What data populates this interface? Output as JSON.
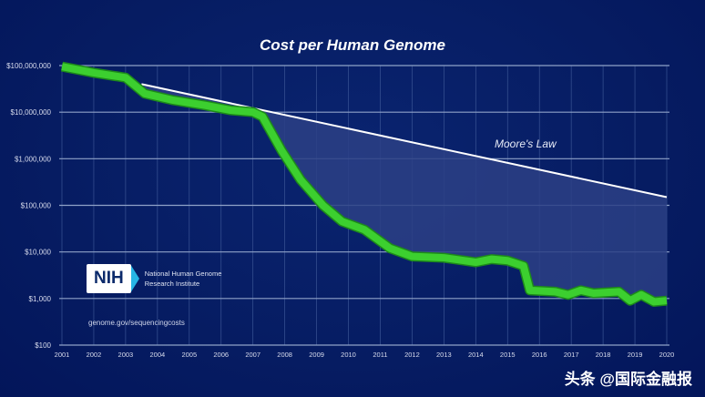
{
  "chart_data": {
    "type": "line",
    "title": "Cost per Human Genome",
    "xlabel": "",
    "ylabel": "",
    "yscale": "log",
    "ylim": [
      100,
      100000000
    ],
    "xlim": [
      2001,
      2020
    ],
    "y_ticks": [
      {
        "value": 100000000,
        "label": "$100,000,000"
      },
      {
        "value": 10000000,
        "label": "$10,000,000"
      },
      {
        "value": 1000000,
        "label": "$1,000,000"
      },
      {
        "value": 100000,
        "label": "$100,000"
      },
      {
        "value": 10000,
        "label": "$10,000"
      },
      {
        "value": 1000,
        "label": "$1,000"
      },
      {
        "value": 100,
        "label": "$100"
      }
    ],
    "x_ticks": [
      "2001",
      "2002",
      "2003",
      "2004",
      "2005",
      "2006",
      "2007",
      "2008",
      "2009",
      "2010",
      "2011",
      "2012",
      "2013",
      "2014",
      "2015",
      "2016",
      "2017",
      "2018",
      "2019",
      "2020"
    ],
    "grid": true,
    "series": [
      {
        "name": "Cost per Genome",
        "color": "#3ccf2f",
        "points": [
          [
            2001,
            95000000
          ],
          [
            2002,
            70000000
          ],
          [
            2003,
            55000000
          ],
          [
            2003.6,
            25000000
          ],
          [
            2004.5,
            18000000
          ],
          [
            2005.5,
            14000000
          ],
          [
            2006.3,
            11000000
          ],
          [
            2007,
            10000000
          ],
          [
            2007.3,
            8000000
          ],
          [
            2007.9,
            1500000
          ],
          [
            2008.5,
            350000
          ],
          [
            2009.2,
            100000
          ],
          [
            2009.8,
            45000
          ],
          [
            2010.5,
            30000
          ],
          [
            2011.3,
            12000
          ],
          [
            2012,
            8000
          ],
          [
            2013,
            7500
          ],
          [
            2014,
            6000
          ],
          [
            2014.5,
            7000
          ],
          [
            2015,
            6500
          ],
          [
            2015.5,
            5000
          ],
          [
            2015.7,
            1500
          ],
          [
            2016.5,
            1400
          ],
          [
            2016.9,
            1200
          ],
          [
            2017.3,
            1500
          ],
          [
            2017.7,
            1300
          ],
          [
            2018.5,
            1400
          ],
          [
            2018.85,
            900
          ],
          [
            2019.2,
            1200
          ],
          [
            2019.6,
            850
          ],
          [
            2020,
            900
          ]
        ]
      },
      {
        "name": "Moore's Law",
        "color": "#ffffff",
        "points": [
          [
            2003.5,
            40000000
          ],
          [
            2020,
            150000
          ]
        ]
      }
    ],
    "annotations": [
      "Moore's Law"
    ]
  },
  "logo": {
    "name": "NIH",
    "org_line1": "National Human Genome",
    "org_line2": "Research Institute"
  },
  "source_url": "genome.gov/sequencingcosts",
  "watermark": "头条 @国际金融报"
}
